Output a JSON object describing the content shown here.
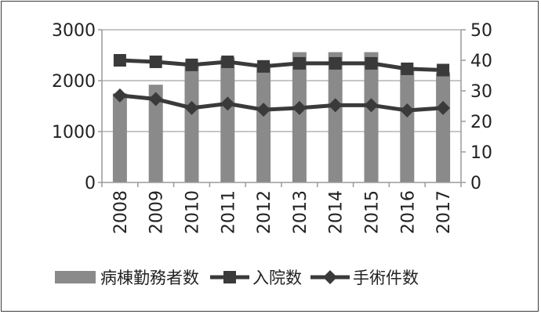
{
  "chart_data": {
    "type": "bar",
    "title": "",
    "xlabel": "",
    "ylabel": "",
    "categories": [
      "2008",
      "2009",
      "2010",
      "2011",
      "2012",
      "2013",
      "2014",
      "2015",
      "2016",
      "2017"
    ],
    "series": [
      {
        "name": "病棟勤務者数",
        "type": "bar",
        "axis": "left",
        "values": [
          1750,
          1920,
          2360,
          2460,
          2340,
          2560,
          2560,
          2560,
          2240,
          2160
        ]
      },
      {
        "name": "入院数",
        "type": "line",
        "marker": "square",
        "axis": "right",
        "values": [
          40,
          39.5,
          38.5,
          39.5,
          38,
          39,
          39,
          39,
          37.2,
          36.8
        ]
      },
      {
        "name": "手術件数",
        "type": "line",
        "marker": "diamond",
        "axis": "right",
        "values": [
          28.5,
          27.3,
          24.4,
          25.8,
          23.8,
          24.4,
          25.3,
          25.3,
          23.6,
          24.4
        ]
      }
    ],
    "y_left": {
      "min": 0,
      "max": 3000,
      "ticks": [
        "0",
        "1000",
        "2000",
        "3000"
      ]
    },
    "y_right": {
      "min": 0,
      "max": 50,
      "ticks": [
        "0",
        "10",
        "20",
        "30",
        "40",
        "50"
      ]
    },
    "grid": true,
    "legend_position": "bottom",
    "colors": {
      "bar": "#8a8a8a",
      "line": "#3a3a3a",
      "grid": "#b4b4b4",
      "axis": "#9a9a9a"
    }
  }
}
